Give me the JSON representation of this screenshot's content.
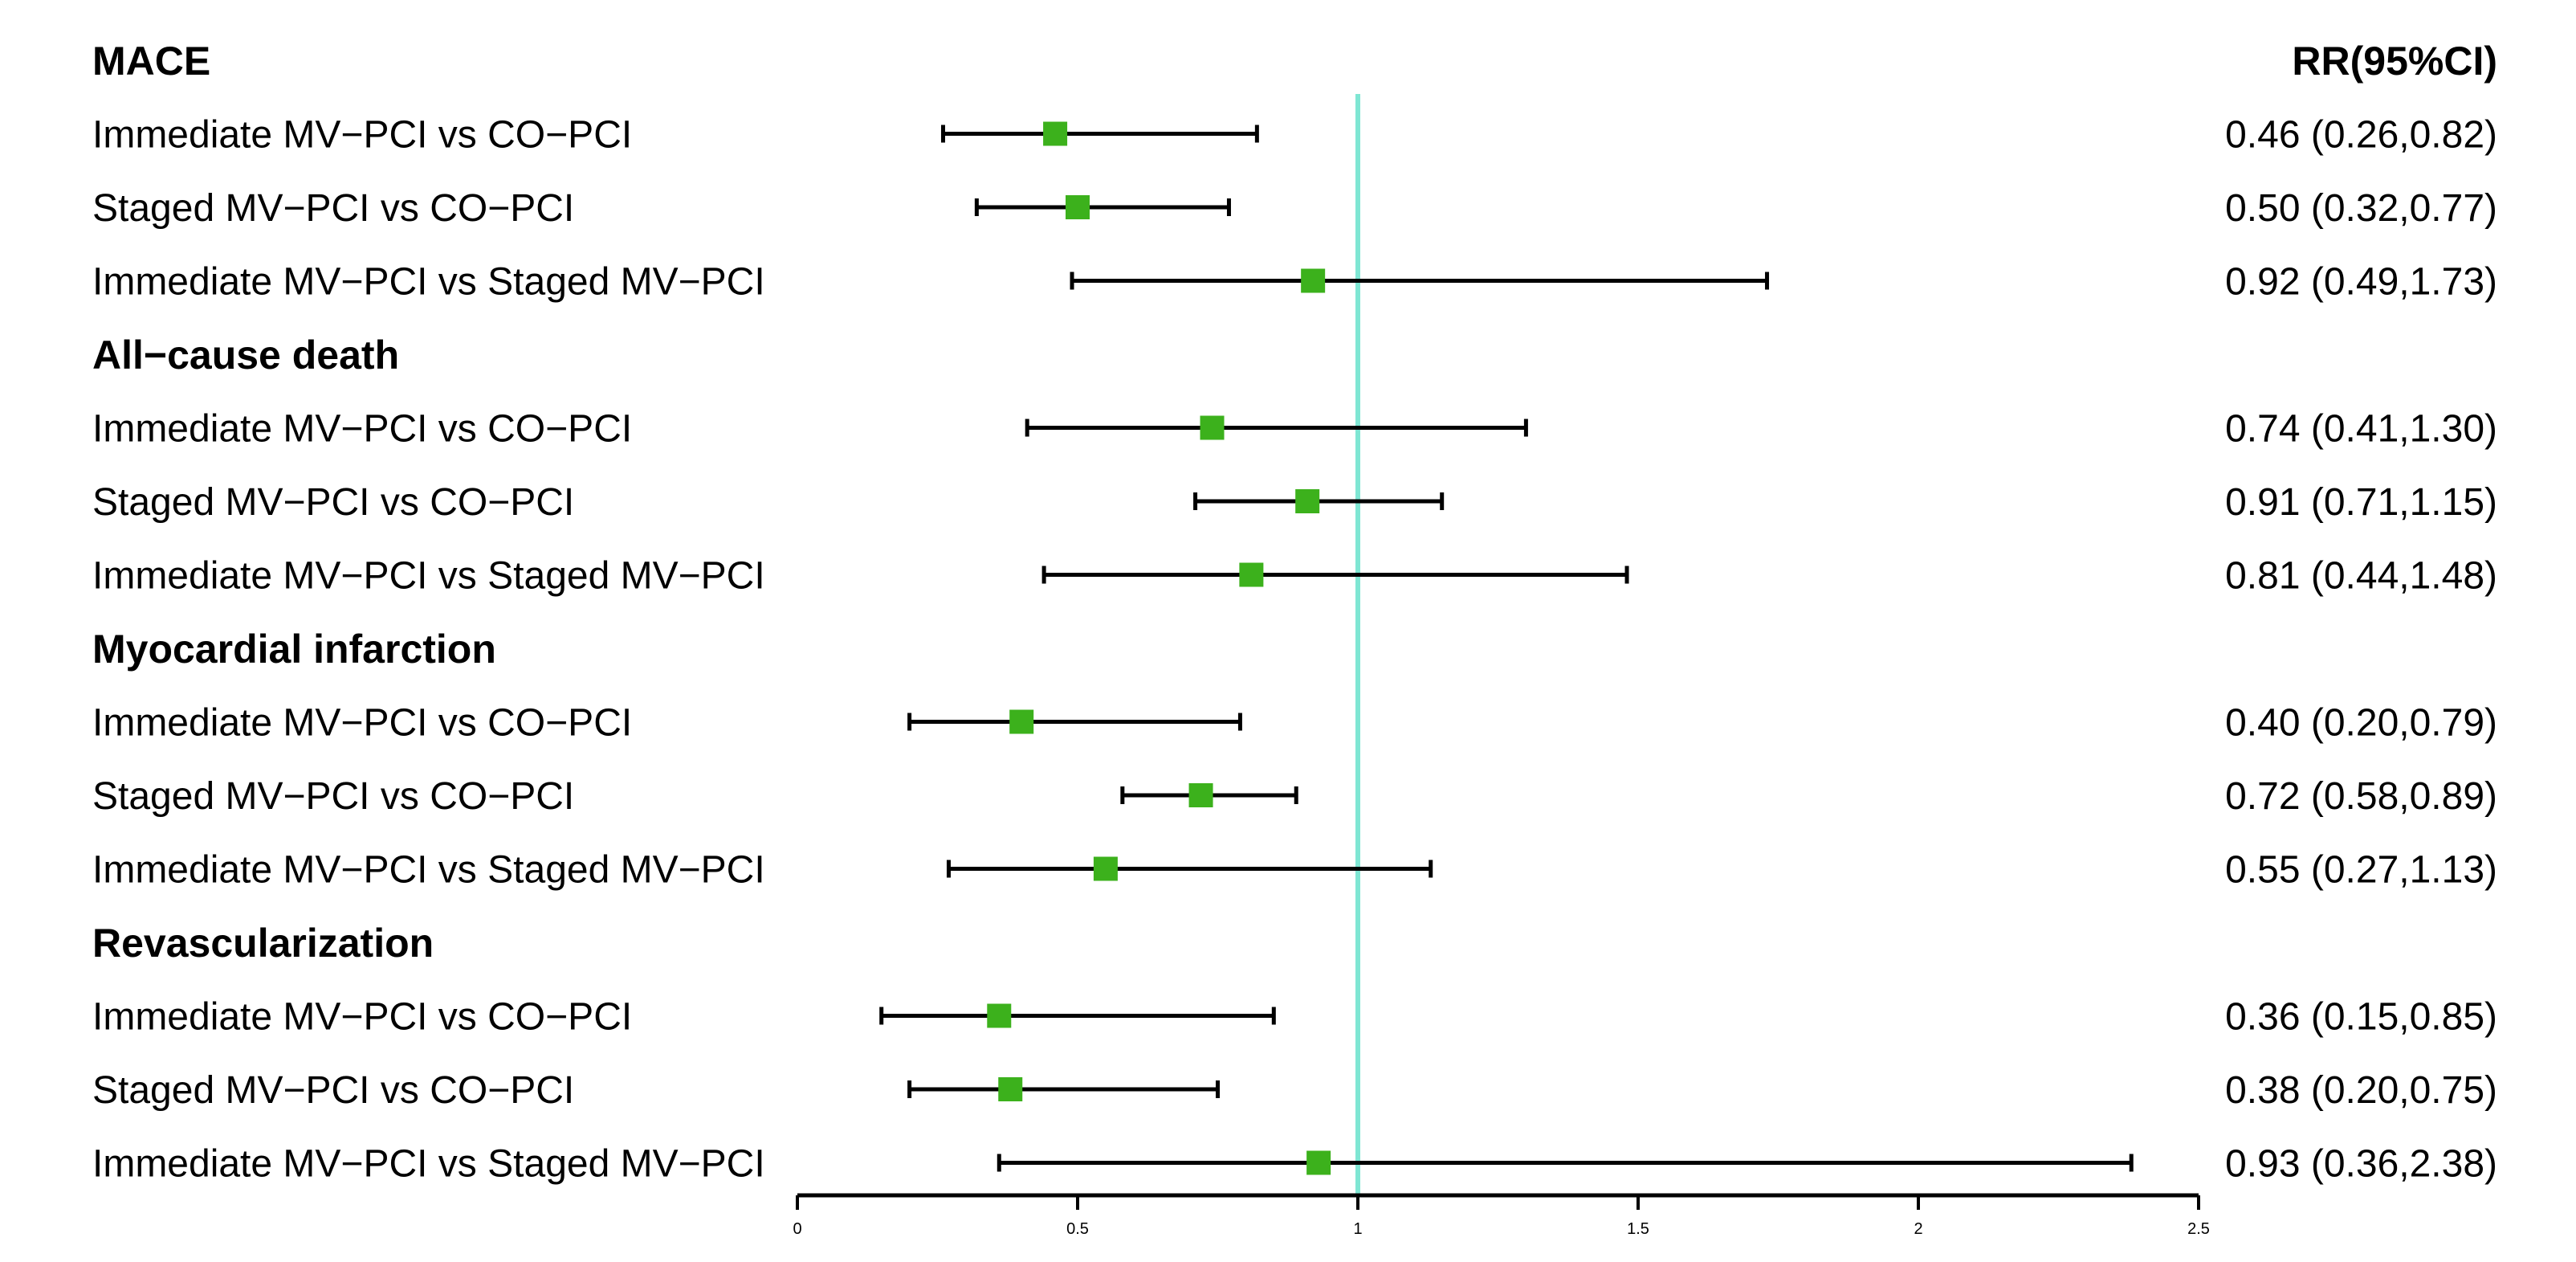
{
  "chart_data": {
    "type": "forest",
    "header_right": "RR(95%CI)",
    "x_ticks": [
      "0",
      "0.5",
      "1",
      "1.5",
      "2",
      "2.5"
    ],
    "x_tick_values": [
      0,
      0.5,
      1,
      1.5,
      2,
      2.5
    ],
    "xlim": [
      0,
      2.5
    ],
    "reference_line": 1,
    "colors": {
      "marker": "#3cb11c",
      "reference_line": "#7fe6d3",
      "interval": "#000000"
    },
    "groups": [
      {
        "title": "MACE",
        "rows": [
          {
            "label": "Immediate MV−PCI vs CO−PCI",
            "rr": 0.46,
            "lo": 0.26,
            "hi": 0.82,
            "text": "0.46 (0.26,0.82)"
          },
          {
            "label": "Staged MV−PCI vs CO−PCI",
            "rr": 0.5,
            "lo": 0.32,
            "hi": 0.77,
            "text": "0.50 (0.32,0.77)"
          },
          {
            "label": "Immediate MV−PCI vs Staged MV−PCI",
            "rr": 0.92,
            "lo": 0.49,
            "hi": 1.73,
            "text": "0.92 (0.49,1.73)"
          }
        ]
      },
      {
        "title": "All−cause death",
        "rows": [
          {
            "label": "Immediate MV−PCI vs CO−PCI",
            "rr": 0.74,
            "lo": 0.41,
            "hi": 1.3,
            "text": "0.74 (0.41,1.30)"
          },
          {
            "label": "Staged MV−PCI vs CO−PCI",
            "rr": 0.91,
            "lo": 0.71,
            "hi": 1.15,
            "text": "0.91 (0.71,1.15)"
          },
          {
            "label": "Immediate MV−PCI vs Staged MV−PCI",
            "rr": 0.81,
            "lo": 0.44,
            "hi": 1.48,
            "text": "0.81 (0.44,1.48)"
          }
        ]
      },
      {
        "title": "Myocardial infarction",
        "rows": [
          {
            "label": "Immediate MV−PCI vs CO−PCI",
            "rr": 0.4,
            "lo": 0.2,
            "hi": 0.79,
            "text": "0.40 (0.20,0.79)"
          },
          {
            "label": "Staged MV−PCI vs CO−PCI",
            "rr": 0.72,
            "lo": 0.58,
            "hi": 0.89,
            "text": "0.72 (0.58,0.89)"
          },
          {
            "label": "Immediate MV−PCI vs Staged MV−PCI",
            "rr": 0.55,
            "lo": 0.27,
            "hi": 1.13,
            "text": "0.55 (0.27,1.13)"
          }
        ]
      },
      {
        "title": "Revascularization",
        "rows": [
          {
            "label": "Immediate MV−PCI vs CO−PCI",
            "rr": 0.36,
            "lo": 0.15,
            "hi": 0.85,
            "text": "0.36 (0.15,0.85)"
          },
          {
            "label": "Staged MV−PCI vs CO−PCI",
            "rr": 0.38,
            "lo": 0.2,
            "hi": 0.75,
            "text": "0.38 (0.20,0.75)"
          },
          {
            "label": "Immediate MV−PCI vs Staged MV−PCI",
            "rr": 0.93,
            "lo": 0.36,
            "hi": 2.38,
            "text": "0.93 (0.36,2.38)"
          }
        ]
      }
    ]
  }
}
